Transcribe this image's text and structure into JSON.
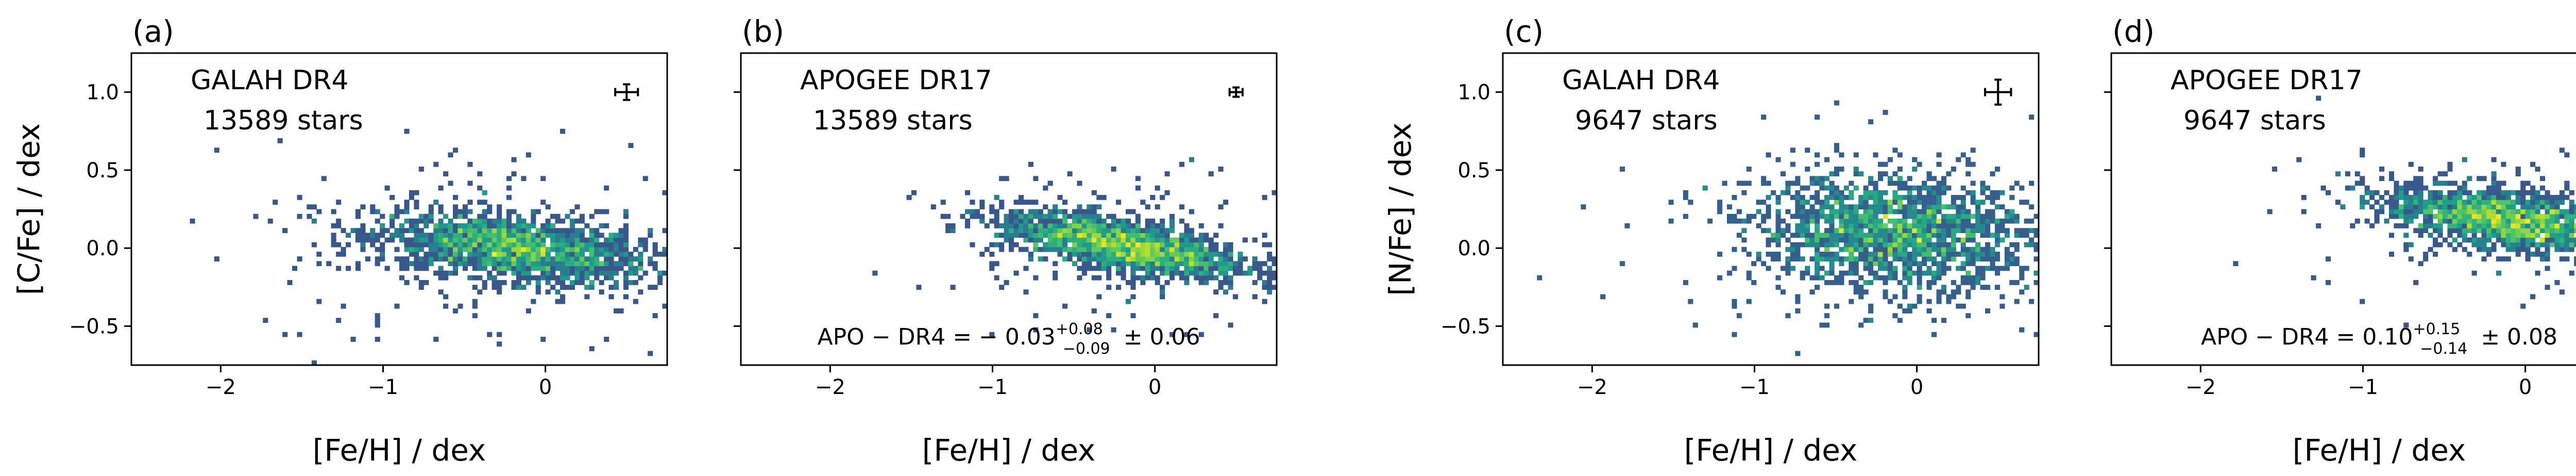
{
  "figure": {
    "shared_xlabel": "[Fe/H] / dex"
  },
  "chart_data": [
    {
      "type": "heatmap",
      "panel_label": "(a)",
      "survey": "GALAH DR4",
      "count_text": "13589 stars",
      "ylabel": "[C/Fe] / dex",
      "xlabel": "[Fe/H] / dex",
      "xlim": [
        -2.55,
        0.75
      ],
      "ylim": [
        -0.75,
        1.25
      ],
      "xticks": [
        -2,
        -1,
        0
      ],
      "yticks": [
        -0.5,
        0.0,
        0.5,
        1.0
      ],
      "xtick_labels": [
        "−2",
        "−1",
        "0"
      ],
      "ytick_labels": [
        "−0.5",
        "0.0",
        "0.5",
        "1.0"
      ],
      "show_ytick_labels": true,
      "error_bar": {
        "x": 0.5,
        "y": 1.0,
        "xerr": 0.07,
        "yerr": 0.05
      },
      "cloud": {
        "cx": -0.2,
        "cy": 0.0,
        "sx": 0.42,
        "sy": 0.1,
        "ridge_slope": 0.12,
        "n_core": 1600,
        "n_halo": 260,
        "halo_sx": 0.75,
        "halo_sy": 0.35
      },
      "annotation": ""
    },
    {
      "type": "heatmap",
      "panel_label": "(b)",
      "survey": "APOGEE DR17",
      "count_text": "13589 stars",
      "ylabel": "",
      "xlabel": "[Fe/H] / dex",
      "xlim": [
        -2.55,
        0.75
      ],
      "ylim": [
        -0.75,
        1.25
      ],
      "xticks": [
        -2,
        -1,
        0
      ],
      "yticks": [
        -0.5,
        0.0,
        0.5,
        1.0
      ],
      "xtick_labels": [
        "−2",
        "−1",
        "0"
      ],
      "ytick_labels": [
        "−0.5",
        "0.0",
        "0.5",
        "1.0"
      ],
      "show_ytick_labels": false,
      "error_bar": {
        "x": 0.5,
        "y": 1.0,
        "xerr": 0.04,
        "yerr": 0.03
      },
      "cloud": {
        "cx": -0.2,
        "cy": 0.02,
        "sx": 0.38,
        "sy": 0.08,
        "ridge_slope": 0.18,
        "n_core": 1700,
        "n_halo": 180,
        "halo_sx": 0.6,
        "halo_sy": 0.25
      },
      "annotation": {
        "prefix": "APO − DR4 = − 0.03",
        "sup": "+0.08",
        "sub": "−0.09",
        "suffix": "± 0.06"
      }
    },
    {
      "type": "heatmap",
      "panel_label": "(c)",
      "survey": "GALAH DR4",
      "count_text": "9647 stars",
      "ylabel": "[N/Fe] / dex",
      "xlabel": "[Fe/H] / dex",
      "xlim": [
        -2.55,
        0.75
      ],
      "ylim": [
        -0.75,
        1.25
      ],
      "xticks": [
        -2,
        -1,
        0
      ],
      "yticks": [
        -0.5,
        0.0,
        0.5,
        1.0
      ],
      "xtick_labels": [
        "−2",
        "−1",
        "0"
      ],
      "ytick_labels": [
        "−0.5",
        "0.0",
        "0.5",
        "1.0"
      ],
      "show_ytick_labels": true,
      "error_bar": {
        "x": 0.5,
        "y": 1.0,
        "xerr": 0.08,
        "yerr": 0.08
      },
      "cloud": {
        "cx": -0.15,
        "cy": 0.1,
        "sx": 0.42,
        "sy": 0.17,
        "ridge_slope": 0.05,
        "n_core": 1500,
        "n_halo": 320,
        "halo_sx": 0.7,
        "halo_sy": 0.32
      },
      "annotation": ""
    },
    {
      "type": "heatmap",
      "panel_label": "(d)",
      "survey": "APOGEE DR17",
      "count_text": "9647 stars",
      "ylabel": "",
      "xlabel": "[Fe/H] / dex",
      "xlim": [
        -2.55,
        0.75
      ],
      "ylim": [
        -0.75,
        1.25
      ],
      "xticks": [
        -2,
        -1,
        0
      ],
      "yticks": [
        -0.5,
        0.0,
        0.5,
        1.0
      ],
      "xtick_labels": [
        "−2",
        "−1",
        "0"
      ],
      "ytick_labels": [
        "−0.5",
        "0.0",
        "0.5",
        "1.0"
      ],
      "show_ytick_labels": false,
      "error_bar": {
        "x": 0.5,
        "y": 1.0,
        "xerr": 0.04,
        "yerr": 0.03
      },
      "cloud": {
        "cx": -0.1,
        "cy": 0.18,
        "sx": 0.38,
        "sy": 0.09,
        "ridge_slope": 0.15,
        "n_core": 1600,
        "n_halo": 200,
        "halo_sx": 0.6,
        "halo_sy": 0.22
      },
      "annotation": {
        "prefix": "APO − DR4 = 0.10",
        "sup": "+0.15",
        "sub": "−0.14",
        "suffix": "± 0.08"
      }
    }
  ]
}
